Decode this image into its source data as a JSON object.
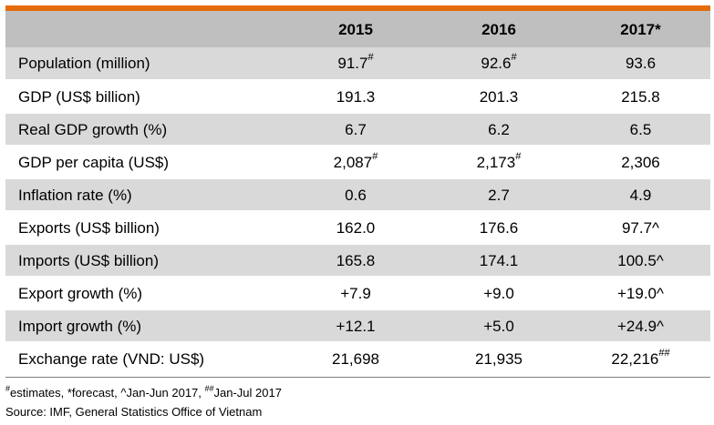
{
  "table": {
    "headers": [
      "",
      "2015",
      "2016",
      "2017*"
    ],
    "rows": [
      {
        "label": "Population (million)",
        "cells": [
          {
            "v": "91.7",
            "s": "#"
          },
          {
            "v": "92.6",
            "s": "#"
          },
          {
            "v": "93.6",
            "s": ""
          }
        ]
      },
      {
        "label": "GDP (US$ billion)",
        "cells": [
          {
            "v": "191.3",
            "s": ""
          },
          {
            "v": "201.3",
            "s": ""
          },
          {
            "v": "215.8",
            "s": ""
          }
        ]
      },
      {
        "label": "Real GDP growth (%)",
        "cells": [
          {
            "v": "6.7",
            "s": ""
          },
          {
            "v": "6.2",
            "s": ""
          },
          {
            "v": "6.5",
            "s": ""
          }
        ]
      },
      {
        "label": "GDP per capita (US$)",
        "cells": [
          {
            "v": "2,087",
            "s": "#"
          },
          {
            "v": "2,173",
            "s": "#"
          },
          {
            "v": "2,306",
            "s": ""
          }
        ]
      },
      {
        "label": "Inflation rate (%)",
        "cells": [
          {
            "v": "0.6",
            "s": ""
          },
          {
            "v": "2.7",
            "s": ""
          },
          {
            "v": "4.9",
            "s": ""
          }
        ]
      },
      {
        "label": "Exports (US$ billion)",
        "cells": [
          {
            "v": "162.0",
            "s": ""
          },
          {
            "v": "176.6",
            "s": ""
          },
          {
            "v": "97.7^",
            "s": ""
          }
        ]
      },
      {
        "label": "Imports (US$ billion)",
        "cells": [
          {
            "v": "165.8",
            "s": ""
          },
          {
            "v": "174.1",
            "s": ""
          },
          {
            "v": "100.5^",
            "s": ""
          }
        ]
      },
      {
        "label": "Export growth (%)",
        "cells": [
          {
            "v": "+7.9",
            "s": ""
          },
          {
            "v": "+9.0",
            "s": ""
          },
          {
            "v": "+19.0^",
            "s": ""
          }
        ]
      },
      {
        "label": "Import growth (%)",
        "cells": [
          {
            "v": "+12.1",
            "s": ""
          },
          {
            "v": "+5.0",
            "s": ""
          },
          {
            "v": "+24.9^",
            "s": ""
          }
        ]
      },
      {
        "label": "Exchange rate (VND: US$)",
        "cells": [
          {
            "v": "21,698",
            "s": ""
          },
          {
            "v": "21,935",
            "s": ""
          },
          {
            "v": "22,216",
            "s": "##"
          }
        ]
      }
    ]
  },
  "footnotes": {
    "sup1": "#",
    "text1": "estimates, *forecast, ^Jan-Jun 2017, ",
    "sup2": "##",
    "text2": "Jan-Jul 2017",
    "source": "Source: IMF, General Statistics Office of Vietnam"
  }
}
